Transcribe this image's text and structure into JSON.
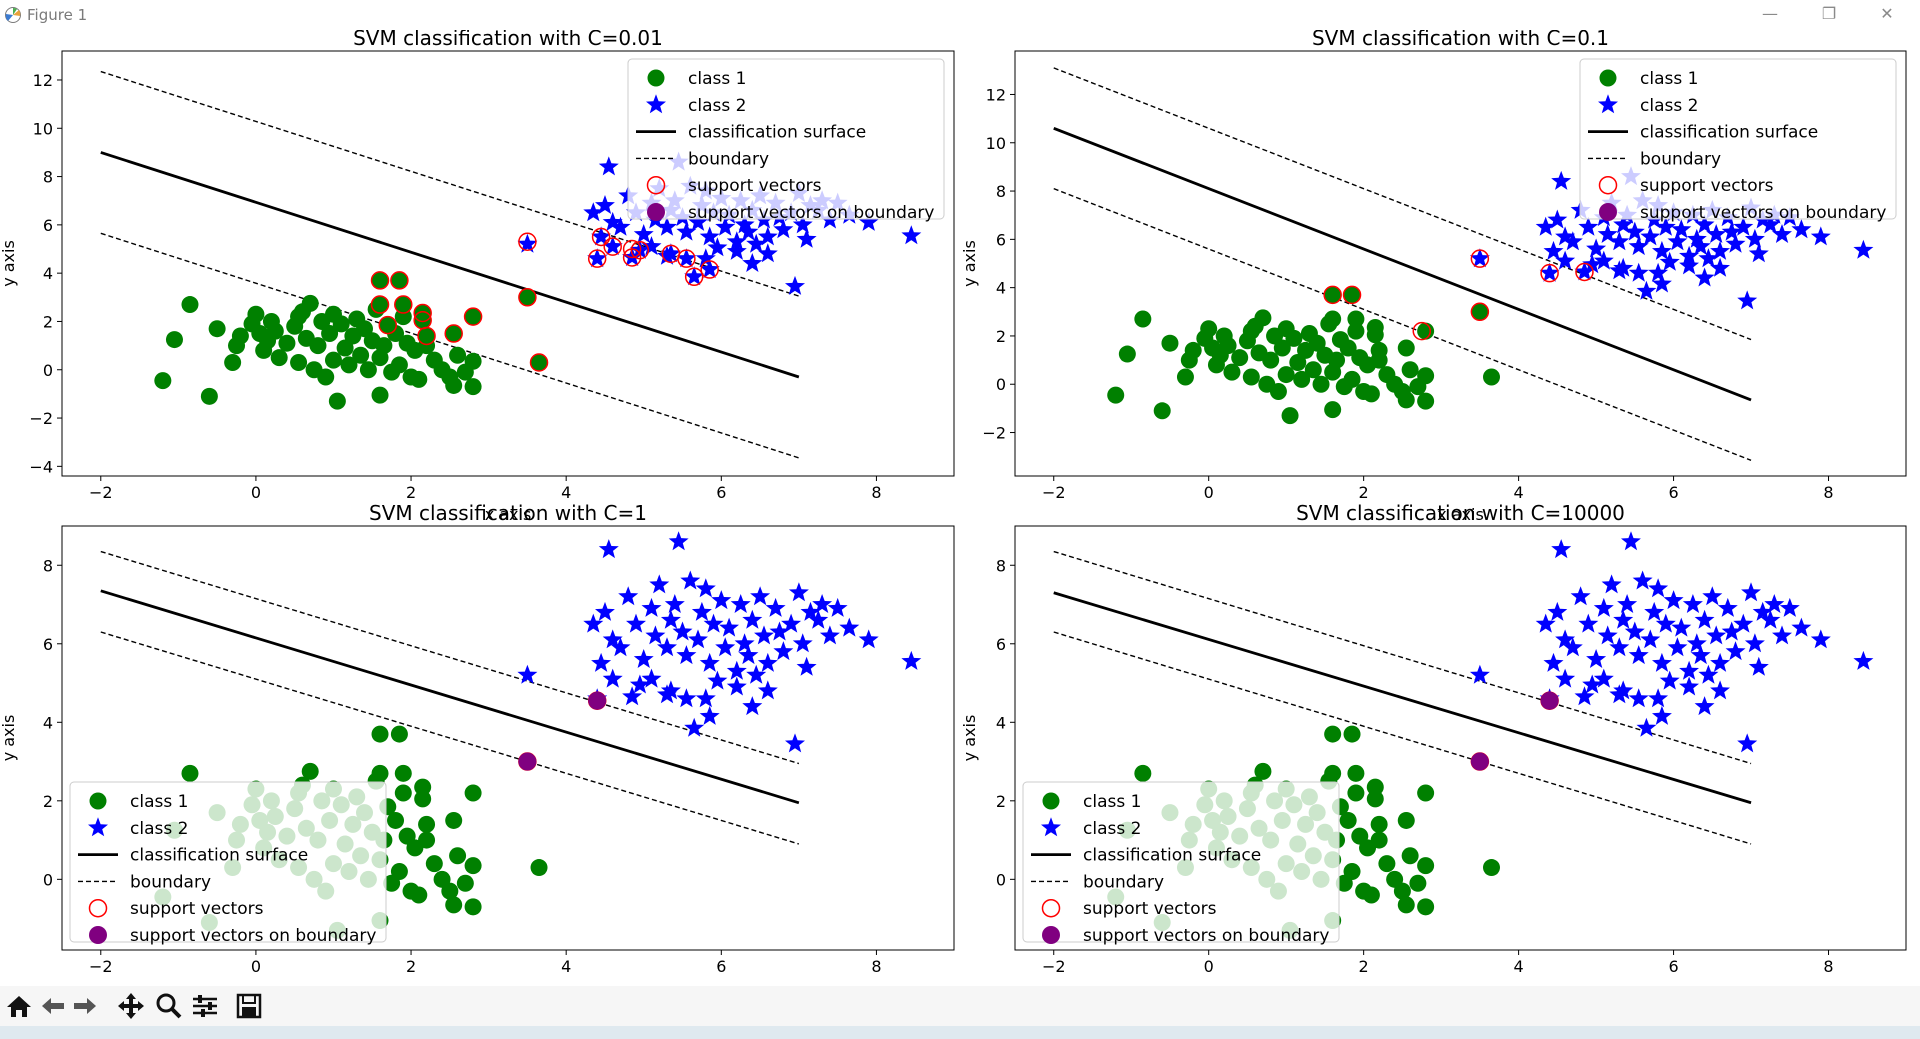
{
  "window": {
    "title": "Figure 1",
    "minimize_icon": "minimize-icon",
    "restore_icon": "restore-icon",
    "close_icon": "close-icon"
  },
  "toolbar": {
    "buttons": [
      "home-icon",
      "back-icon",
      "forward-icon",
      "pan-icon",
      "zoom-icon",
      "configure-subplots-icon",
      "save-icon"
    ]
  },
  "legend_labels": [
    "class 1",
    "class 2",
    "classification surface",
    "boundary",
    "support vectors",
    "support vectors on boundary"
  ],
  "colors": {
    "class1": "#008000",
    "class2": "#0000ff",
    "surface": "#000000",
    "sv_ring": "#ff0000",
    "sv_boundary": "#800080"
  },
  "chart_data": [
    {
      "type": "scatter",
      "title": "SVM classification with C=0.01",
      "xlabel": "x axis",
      "ylabel": "y axis",
      "xlim": [
        -2.5,
        9.0
      ],
      "ylim": [
        -4.4,
        13.2
      ],
      "xticks": [
        -2,
        0,
        2,
        4,
        6,
        8
      ],
      "yticks": [
        -4,
        -2,
        0,
        2,
        4,
        6,
        8,
        10,
        12
      ],
      "legend": "upper right",
      "surface": {
        "x": [
          -2,
          7
        ],
        "y": [
          9.0,
          -0.3
        ]
      },
      "boundary_upper": {
        "x": [
          -2,
          7
        ],
        "y": [
          12.35,
          3.05
        ]
      },
      "boundary_lower": {
        "x": [
          -2,
          7
        ],
        "y": [
          5.65,
          -3.65
        ]
      },
      "support_vectors": [
        [
          1.6,
          3.7
        ],
        [
          1.85,
          3.7
        ],
        [
          1.6,
          2.7
        ],
        [
          1.9,
          2.7
        ],
        [
          2.15,
          2.35
        ],
        [
          2.15,
          2.05
        ],
        [
          2.2,
          1.4
        ],
        [
          2.55,
          1.5
        ],
        [
          2.8,
          2.2
        ],
        [
          1.7,
          1.85
        ],
        [
          3.5,
          5.3
        ],
        [
          4.4,
          4.6
        ],
        [
          4.45,
          5.5
        ],
        [
          4.6,
          5.1
        ],
        [
          4.85,
          4.65
        ],
        [
          4.85,
          5.0
        ],
        [
          4.95,
          4.95
        ],
        [
          5.35,
          4.8
        ],
        [
          5.55,
          4.6
        ],
        [
          5.65,
          3.85
        ],
        [
          5.85,
          4.15
        ],
        [
          3.5,
          3.0
        ],
        [
          3.65,
          0.3
        ]
      ],
      "support_vectors_on_boundary": []
    },
    {
      "type": "scatter",
      "title": "SVM classification with C=0.1",
      "xlabel": "x axis",
      "ylabel": "y axis",
      "xlim": [
        -2.5,
        9.0
      ],
      "ylim": [
        -3.8,
        13.8
      ],
      "xticks": [
        -2,
        0,
        2,
        4,
        6,
        8
      ],
      "yticks": [
        -2,
        0,
        2,
        4,
        6,
        8,
        10,
        12
      ],
      "legend": "upper right",
      "surface": {
        "x": [
          -2,
          7
        ],
        "y": [
          10.6,
          -0.65
        ]
      },
      "boundary_upper": {
        "x": [
          -2,
          7
        ],
        "y": [
          13.1,
          1.85
        ]
      },
      "boundary_lower": {
        "x": [
          -2,
          7
        ],
        "y": [
          8.1,
          -3.15
        ]
      },
      "support_vectors": [
        [
          1.6,
          3.7
        ],
        [
          1.85,
          3.7
        ],
        [
          2.75,
          2.2
        ],
        [
          3.5,
          5.2
        ],
        [
          3.5,
          3.0
        ],
        [
          4.4,
          4.6
        ],
        [
          4.85,
          4.65
        ]
      ],
      "support_vectors_on_boundary": []
    },
    {
      "type": "scatter",
      "title": "SVM classification with C=1",
      "xlabel": "",
      "ylabel": "y axis",
      "xlim": [
        -2.5,
        9.0
      ],
      "ylim": [
        -1.8,
        9.0
      ],
      "xticks": [
        -2,
        0,
        2,
        4,
        6,
        8
      ],
      "yticks": [
        0,
        2,
        4,
        6,
        8
      ],
      "legend": "lower left",
      "surface": {
        "x": [
          -2,
          7
        ],
        "y": [
          7.35,
          1.95
        ]
      },
      "boundary_upper": {
        "x": [
          -2,
          7
        ],
        "y": [
          8.35,
          2.95
        ]
      },
      "boundary_lower": {
        "x": [
          -2,
          7
        ],
        "y": [
          6.3,
          0.9
        ]
      },
      "support_vectors": [
        [
          3.5,
          3.0
        ],
        [
          4.4,
          4.55
        ]
      ],
      "support_vectors_on_boundary": [
        [
          3.5,
          3.0
        ],
        [
          4.4,
          4.55
        ]
      ]
    },
    {
      "type": "scatter",
      "title": "SVM classification with C=10000",
      "xlabel": "",
      "ylabel": "y axis",
      "xlim": [
        -2.5,
        9.0
      ],
      "ylim": [
        -1.8,
        9.0
      ],
      "xticks": [
        -2,
        0,
        2,
        4,
        6,
        8
      ],
      "yticks": [
        0,
        2,
        4,
        6,
        8
      ],
      "legend": "lower left",
      "surface": {
        "x": [
          -2,
          7
        ],
        "y": [
          7.3,
          1.95
        ]
      },
      "boundary_upper": {
        "x": [
          -2,
          7
        ],
        "y": [
          8.35,
          2.95
        ]
      },
      "boundary_lower": {
        "x": [
          -2,
          7
        ],
        "y": [
          6.3,
          0.9
        ]
      },
      "support_vectors": [
        [
          3.5,
          3.0
        ],
        [
          4.4,
          4.55
        ]
      ],
      "support_vectors_on_boundary": [
        [
          3.5,
          3.0
        ],
        [
          4.4,
          4.55
        ]
      ]
    }
  ],
  "class1_points": [
    [
      -1.2,
      -0.45
    ],
    [
      -0.6,
      -1.1
    ],
    [
      -0.85,
      2.7
    ],
    [
      -1.05,
      1.25
    ],
    [
      -0.5,
      1.7
    ],
    [
      -0.3,
      0.3
    ],
    [
      -0.25,
      1.0
    ],
    [
      -0.2,
      1.4
    ],
    [
      -0.05,
      1.9
    ],
    [
      0.0,
      2.3
    ],
    [
      0.05,
      1.5
    ],
    [
      0.1,
      0.8
    ],
    [
      0.15,
      1.2
    ],
    [
      0.2,
      2.0
    ],
    [
      0.25,
      1.6
    ],
    [
      0.3,
      0.5
    ],
    [
      0.4,
      1.1
    ],
    [
      0.5,
      1.8
    ],
    [
      0.55,
      2.2
    ],
    [
      0.55,
      0.3
    ],
    [
      0.6,
      2.4
    ],
    [
      0.65,
      1.3
    ],
    [
      0.7,
      2.75
    ],
    [
      0.75,
      0.0
    ],
    [
      0.8,
      1.0
    ],
    [
      0.85,
      2.0
    ],
    [
      0.9,
      -0.3
    ],
    [
      0.95,
      1.5
    ],
    [
      1.0,
      0.4
    ],
    [
      1.0,
      2.3
    ],
    [
      1.05,
      -1.3
    ],
    [
      1.1,
      1.9
    ],
    [
      1.15,
      0.9
    ],
    [
      1.2,
      0.2
    ],
    [
      1.25,
      1.4
    ],
    [
      1.3,
      2.1
    ],
    [
      1.35,
      0.6
    ],
    [
      1.4,
      1.7
    ],
    [
      1.45,
      0.0
    ],
    [
      1.5,
      1.2
    ],
    [
      1.55,
      2.5
    ],
    [
      1.6,
      -1.05
    ],
    [
      1.6,
      0.5
    ],
    [
      1.65,
      1.0
    ],
    [
      1.7,
      1.85
    ],
    [
      1.75,
      -0.1
    ],
    [
      1.8,
      1.5
    ],
    [
      1.85,
      0.2
    ],
    [
      1.9,
      2.2
    ],
    [
      1.95,
      1.1
    ],
    [
      2.0,
      -0.3
    ],
    [
      2.05,
      0.8
    ],
    [
      2.1,
      -0.4
    ],
    [
      2.2,
      1.0
    ],
    [
      2.3,
      0.4
    ],
    [
      2.4,
      0.0
    ],
    [
      2.5,
      -0.3
    ],
    [
      2.55,
      -0.65
    ],
    [
      2.6,
      0.6
    ],
    [
      2.7,
      -0.1
    ],
    [
      2.8,
      0.35
    ],
    [
      2.8,
      -0.7
    ],
    [
      1.6,
      3.7
    ],
    [
      1.85,
      3.7
    ],
    [
      1.6,
      2.7
    ],
    [
      1.9,
      2.7
    ],
    [
      2.15,
      2.35
    ],
    [
      2.15,
      2.05
    ],
    [
      2.2,
      1.4
    ],
    [
      2.55,
      1.5
    ],
    [
      2.8,
      2.2
    ],
    [
      3.5,
      3.0
    ],
    [
      3.65,
      0.3
    ]
  ],
  "class2_points": [
    [
      3.5,
      5.2
    ],
    [
      4.4,
      4.6
    ],
    [
      4.85,
      4.65
    ],
    [
      4.45,
      5.5
    ],
    [
      4.6,
      5.1
    ],
    [
      4.95,
      4.95
    ],
    [
      5.35,
      4.8
    ],
    [
      5.55,
      4.6
    ],
    [
      5.65,
      3.85
    ],
    [
      5.85,
      4.15
    ],
    [
      4.55,
      8.4
    ],
    [
      5.45,
      8.6
    ],
    [
      4.35,
      6.5
    ],
    [
      4.5,
      6.8
    ],
    [
      4.6,
      6.1
    ],
    [
      4.7,
      5.9
    ],
    [
      4.8,
      7.2
    ],
    [
      4.9,
      6.5
    ],
    [
      5.0,
      5.6
    ],
    [
      5.1,
      6.9
    ],
    [
      5.15,
      6.2
    ],
    [
      5.2,
      7.5
    ],
    [
      5.3,
      5.9
    ],
    [
      5.35,
      6.6
    ],
    [
      5.4,
      7.0
    ],
    [
      5.5,
      6.3
    ],
    [
      5.55,
      5.7
    ],
    [
      5.6,
      7.6
    ],
    [
      5.7,
      6.1
    ],
    [
      5.75,
      6.8
    ],
    [
      5.8,
      7.4
    ],
    [
      5.85,
      5.5
    ],
    [
      5.9,
      6.5
    ],
    [
      6.0,
      7.1
    ],
    [
      6.05,
      5.9
    ],
    [
      6.1,
      6.4
    ],
    [
      6.2,
      5.3
    ],
    [
      6.25,
      7.0
    ],
    [
      6.3,
      6.0
    ],
    [
      6.35,
      5.7
    ],
    [
      6.4,
      6.6
    ],
    [
      6.45,
      5.2
    ],
    [
      6.5,
      7.2
    ],
    [
      6.55,
      6.2
    ],
    [
      6.6,
      5.5
    ],
    [
      6.7,
      6.9
    ],
    [
      6.75,
      6.3
    ],
    [
      6.8,
      5.8
    ],
    [
      6.9,
      6.5
    ],
    [
      7.0,
      7.3
    ],
    [
      7.05,
      6.0
    ],
    [
      7.1,
      5.4
    ],
    [
      7.15,
      6.8
    ],
    [
      7.25,
      6.6
    ],
    [
      7.3,
      7.0
    ],
    [
      7.4,
      6.2
    ],
    [
      7.5,
      6.9
    ],
    [
      7.65,
      6.4
    ],
    [
      7.9,
      6.1
    ],
    [
      8.45,
      5.55
    ],
    [
      6.95,
      3.45
    ],
    [
      5.3,
      4.7
    ],
    [
      5.8,
      4.6
    ],
    [
      6.2,
      4.9
    ],
    [
      6.6,
      4.8
    ],
    [
      5.1,
      5.1
    ],
    [
      5.95,
      5.05
    ],
    [
      6.4,
      4.4
    ]
  ]
}
